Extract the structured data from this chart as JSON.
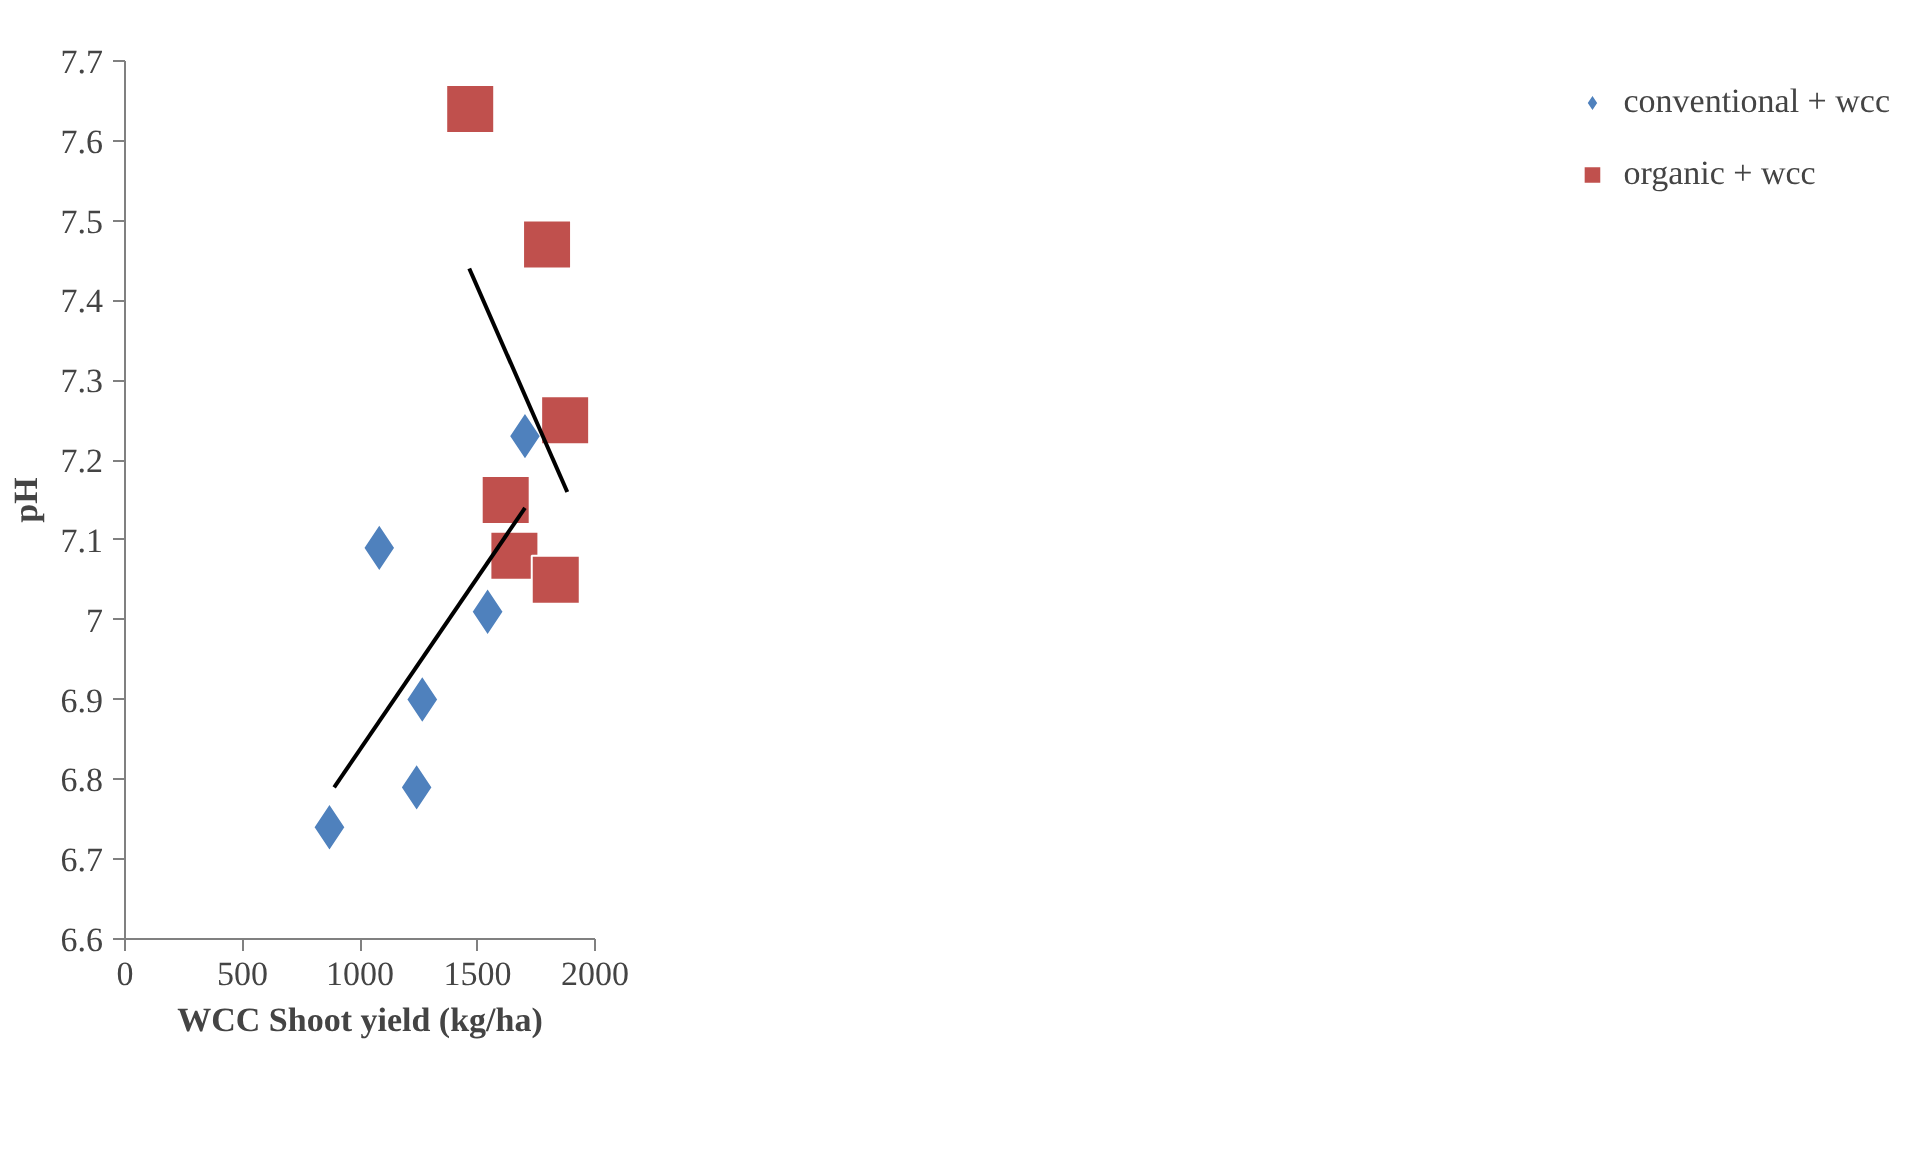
{
  "chart_data": {
    "type": "scatter",
    "xlabel": "WCC Shoot yield (kg/ha)",
    "ylabel": "pH",
    "xlim": [
      0,
      2000
    ],
    "xticks": [
      0,
      500,
      1000,
      1500,
      2000
    ],
    "ylim": [
      6.6,
      7.7
    ],
    "yticks": [
      {
        "value": 6.6,
        "label": "6.6"
      },
      {
        "value": 6.7,
        "label": "6.7"
      },
      {
        "value": 6.8,
        "label": "6.8"
      },
      {
        "value": 6.9,
        "label": "6.9"
      },
      {
        "value": 7,
        "label": "7"
      },
      {
        "value": 7.1,
        "label": "7.1"
      },
      {
        "value": 7.2,
        "label": "7.2"
      },
      {
        "value": 7.3,
        "label": "7.3"
      },
      {
        "value": 7.4,
        "label": "7.4"
      },
      {
        "value": 7.5,
        "label": "7.5"
      },
      {
        "value": 7.6,
        "label": "7.6"
      },
      {
        "value": 7.7,
        "label": "7.7"
      }
    ],
    "grid": false,
    "legend": "right",
    "series": [
      {
        "name": "conventional + wcc",
        "color": "#4f81bd",
        "marker": "diamond",
        "x": [
          870,
          1082,
          1241,
          1265,
          1543,
          1702
        ],
        "values": [
          6.74,
          7.09,
          6.79,
          6.9,
          7.01,
          7.23
        ]
      },
      {
        "name": "organic + wcc",
        "color": "#c0504d",
        "marker": "square",
        "x": [
          1469,
          1796,
          1873,
          1620,
          1657,
          1833
        ],
        "values": [
          7.64,
          7.47,
          7.25,
          7.15,
          7.08,
          7.05
        ]
      },
      {
        "type": "line",
        "color": "#000000",
        "x": [
          890,
          1702
        ],
        "values": [
          6.79,
          7.14
        ]
      },
      {
        "type": "line",
        "color": "#000000",
        "x": [
          1465,
          1882
        ],
        "values": [
          7.44,
          7.16
        ]
      }
    ]
  }
}
